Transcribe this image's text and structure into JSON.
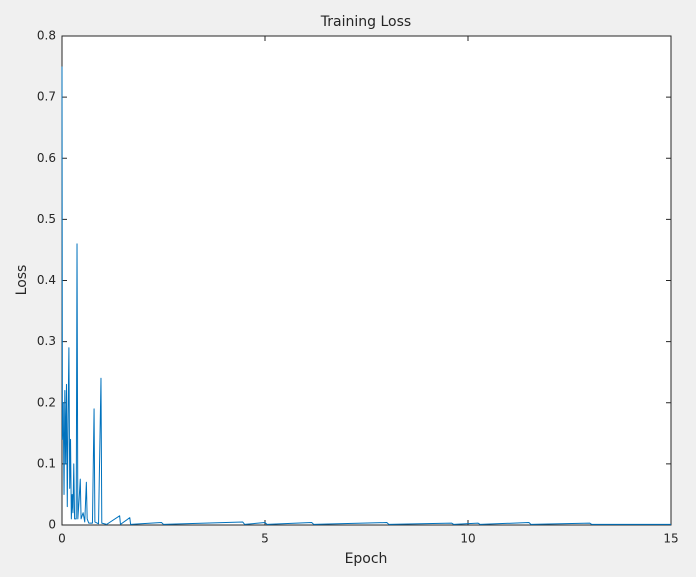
{
  "chart_data": {
    "type": "line",
    "title": "Training Loss",
    "xlabel": "Epoch",
    "ylabel": "Loss",
    "x": [
      0,
      0.01,
      0.03,
      0.05,
      0.07,
      0.09,
      0.11,
      0.13,
      0.15,
      0.17,
      0.19,
      0.21,
      0.23,
      0.25,
      0.27,
      0.29,
      0.31,
      0.35,
      0.37,
      0.39,
      0.42,
      0.45,
      0.47,
      0.52,
      0.56,
      0.6,
      0.62,
      0.66,
      0.75,
      0.79,
      0.81,
      0.9,
      0.96,
      0.98,
      1.1,
      1.42,
      1.44,
      1.67,
      1.69,
      2.45,
      2.5,
      4.45,
      4.5,
      5,
      5.05,
      6.15,
      6.2,
      8,
      8.05,
      9.6,
      9.65,
      10.25,
      10.3,
      11.5,
      11.55,
      13,
      13.05,
      15
    ],
    "values": [
      0.75,
      0.14,
      0.2,
      0.05,
      0.22,
      0.1,
      0.23,
      0.03,
      0.18,
      0.29,
      0.06,
      0.14,
      0.01,
      0.05,
      0.02,
      0.1,
      0.01,
      0.01,
      0.46,
      0.01,
      0.04,
      0.075,
      0.01,
      0.02,
      0.005,
      0.07,
      0.01,
      0.003,
      0.003,
      0.19,
      0.005,
      0.002,
      0.24,
      0.003,
      0.001,
      0.015,
      0.001,
      0.012,
      0.001,
      0.004,
      0.001,
      0.005,
      0.001,
      0.004,
      0.001,
      0.004,
      0.001,
      0.004,
      0.001,
      0.003,
      0.001,
      0.003,
      0.001,
      0.004,
      0.001,
      0.003,
      0.001,
      0.001
    ],
    "color": "#0072bd",
    "xlim": [
      0,
      15
    ],
    "xticks": [
      0,
      5,
      10,
      15
    ],
    "ylim": [
      0,
      0.8
    ],
    "yticks": [
      0,
      0.1,
      0.2,
      0.3,
      0.4,
      0.5,
      0.6,
      0.7,
      0.8
    ],
    "grid": false
  }
}
